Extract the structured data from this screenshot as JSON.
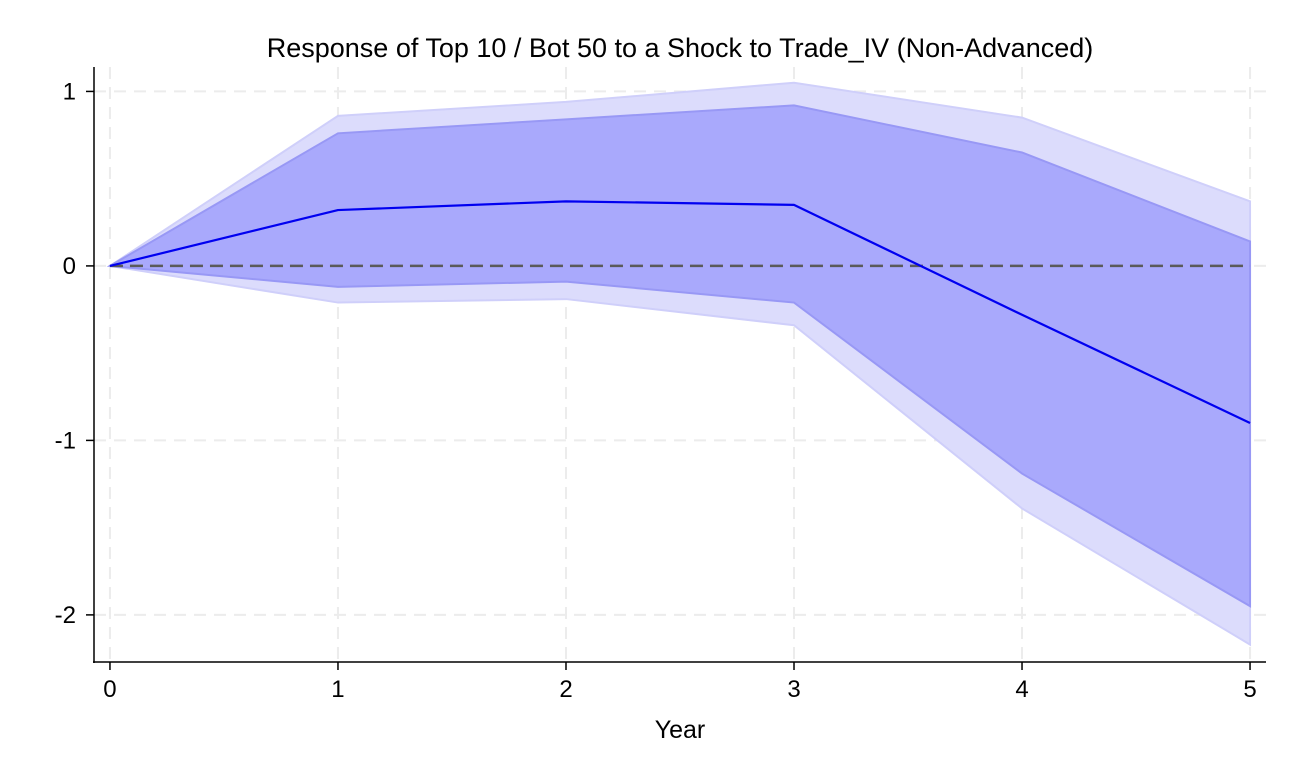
{
  "chart_data": {
    "type": "area",
    "title": "Response of Top 10 / Bot 50 to a Shock to Trade_IV (Non-Advanced)",
    "xlabel": "Year",
    "ylabel": "",
    "x": [
      0,
      1,
      2,
      3,
      4,
      5
    ],
    "xlim": [
      -0.07,
      5.07
    ],
    "ylim": [
      -2.27,
      1.14
    ],
    "xticks": [
      "0",
      "1",
      "2",
      "3",
      "4",
      "5"
    ],
    "xtick_values": [
      0,
      1,
      2,
      3,
      4,
      5
    ],
    "yticks": [
      "1",
      "0",
      "-1",
      "-2"
    ],
    "ytick_values": [
      1,
      0,
      -1,
      -2
    ],
    "grid": true,
    "zero_line": true,
    "series": [
      {
        "role": "outer_band",
        "lower": [
          0,
          -0.21,
          -0.19,
          -0.34,
          -1.39,
          -2.17
        ],
        "upper": [
          0,
          0.86,
          0.94,
          1.05,
          0.85,
          0.37
        ],
        "color": "#dcdcfc"
      },
      {
        "role": "inner_band",
        "lower": [
          0,
          -0.12,
          -0.09,
          -0.21,
          -1.19,
          -1.95
        ],
        "upper": [
          0,
          0.76,
          0.84,
          0.92,
          0.65,
          0.14
        ],
        "color": "#a9a9fc"
      },
      {
        "role": "point_estimate",
        "values": [
          0,
          0.32,
          0.37,
          0.35,
          -0.28,
          -0.9
        ],
        "color": "#0000f0"
      }
    ],
    "colors": {
      "grid": "#ececec",
      "zero_line": "#5a5a5a",
      "axis": "#000000"
    }
  }
}
